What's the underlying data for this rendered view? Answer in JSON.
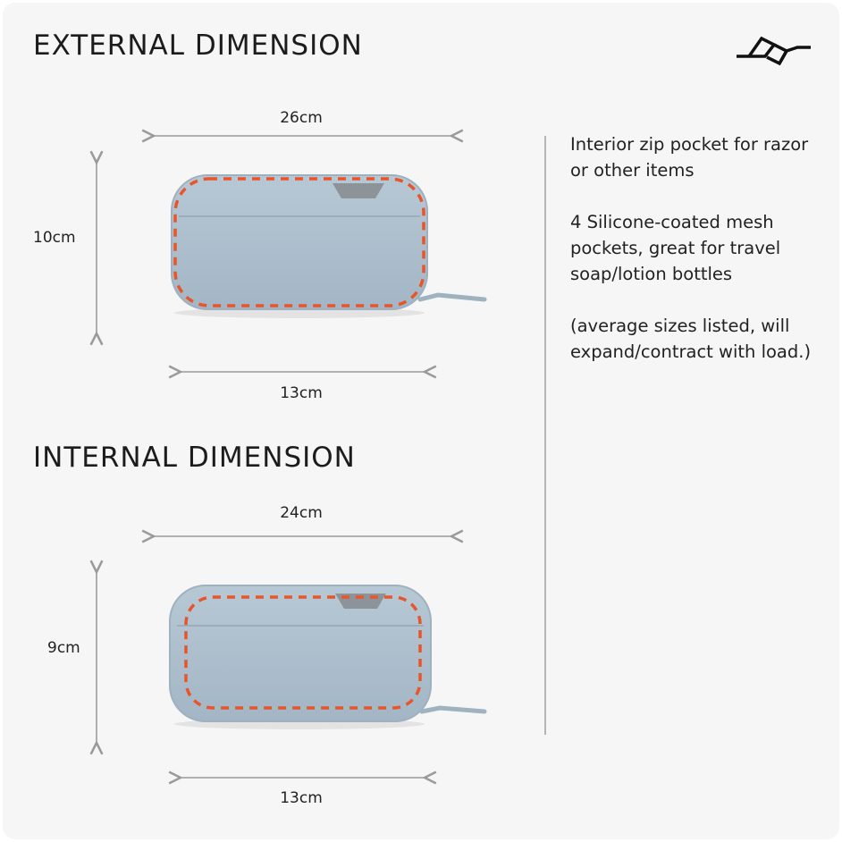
{
  "external": {
    "heading": "EXTERNAL DIMENSION",
    "width_label": "26cm",
    "height_label": "10cm",
    "depth_label": "13cm"
  },
  "internal": {
    "heading": "INTERNAL DIMENSION",
    "width_label": "24cm",
    "height_label": "9cm",
    "depth_label": "13cm"
  },
  "features": [
    "Interior zip pocket for razor or other items",
    "4 Silicone-coated mesh pockets, great for travel soap/lotion bottles",
    "(average sizes listed, will expand/contract with load.)"
  ],
  "logo": {
    "brand_icon": "peak-design-logo"
  },
  "colors": {
    "bag": "#a9bccb",
    "dash": "#e8552a",
    "arrow": "#9a9a9a",
    "background": "#f6f6f6"
  }
}
